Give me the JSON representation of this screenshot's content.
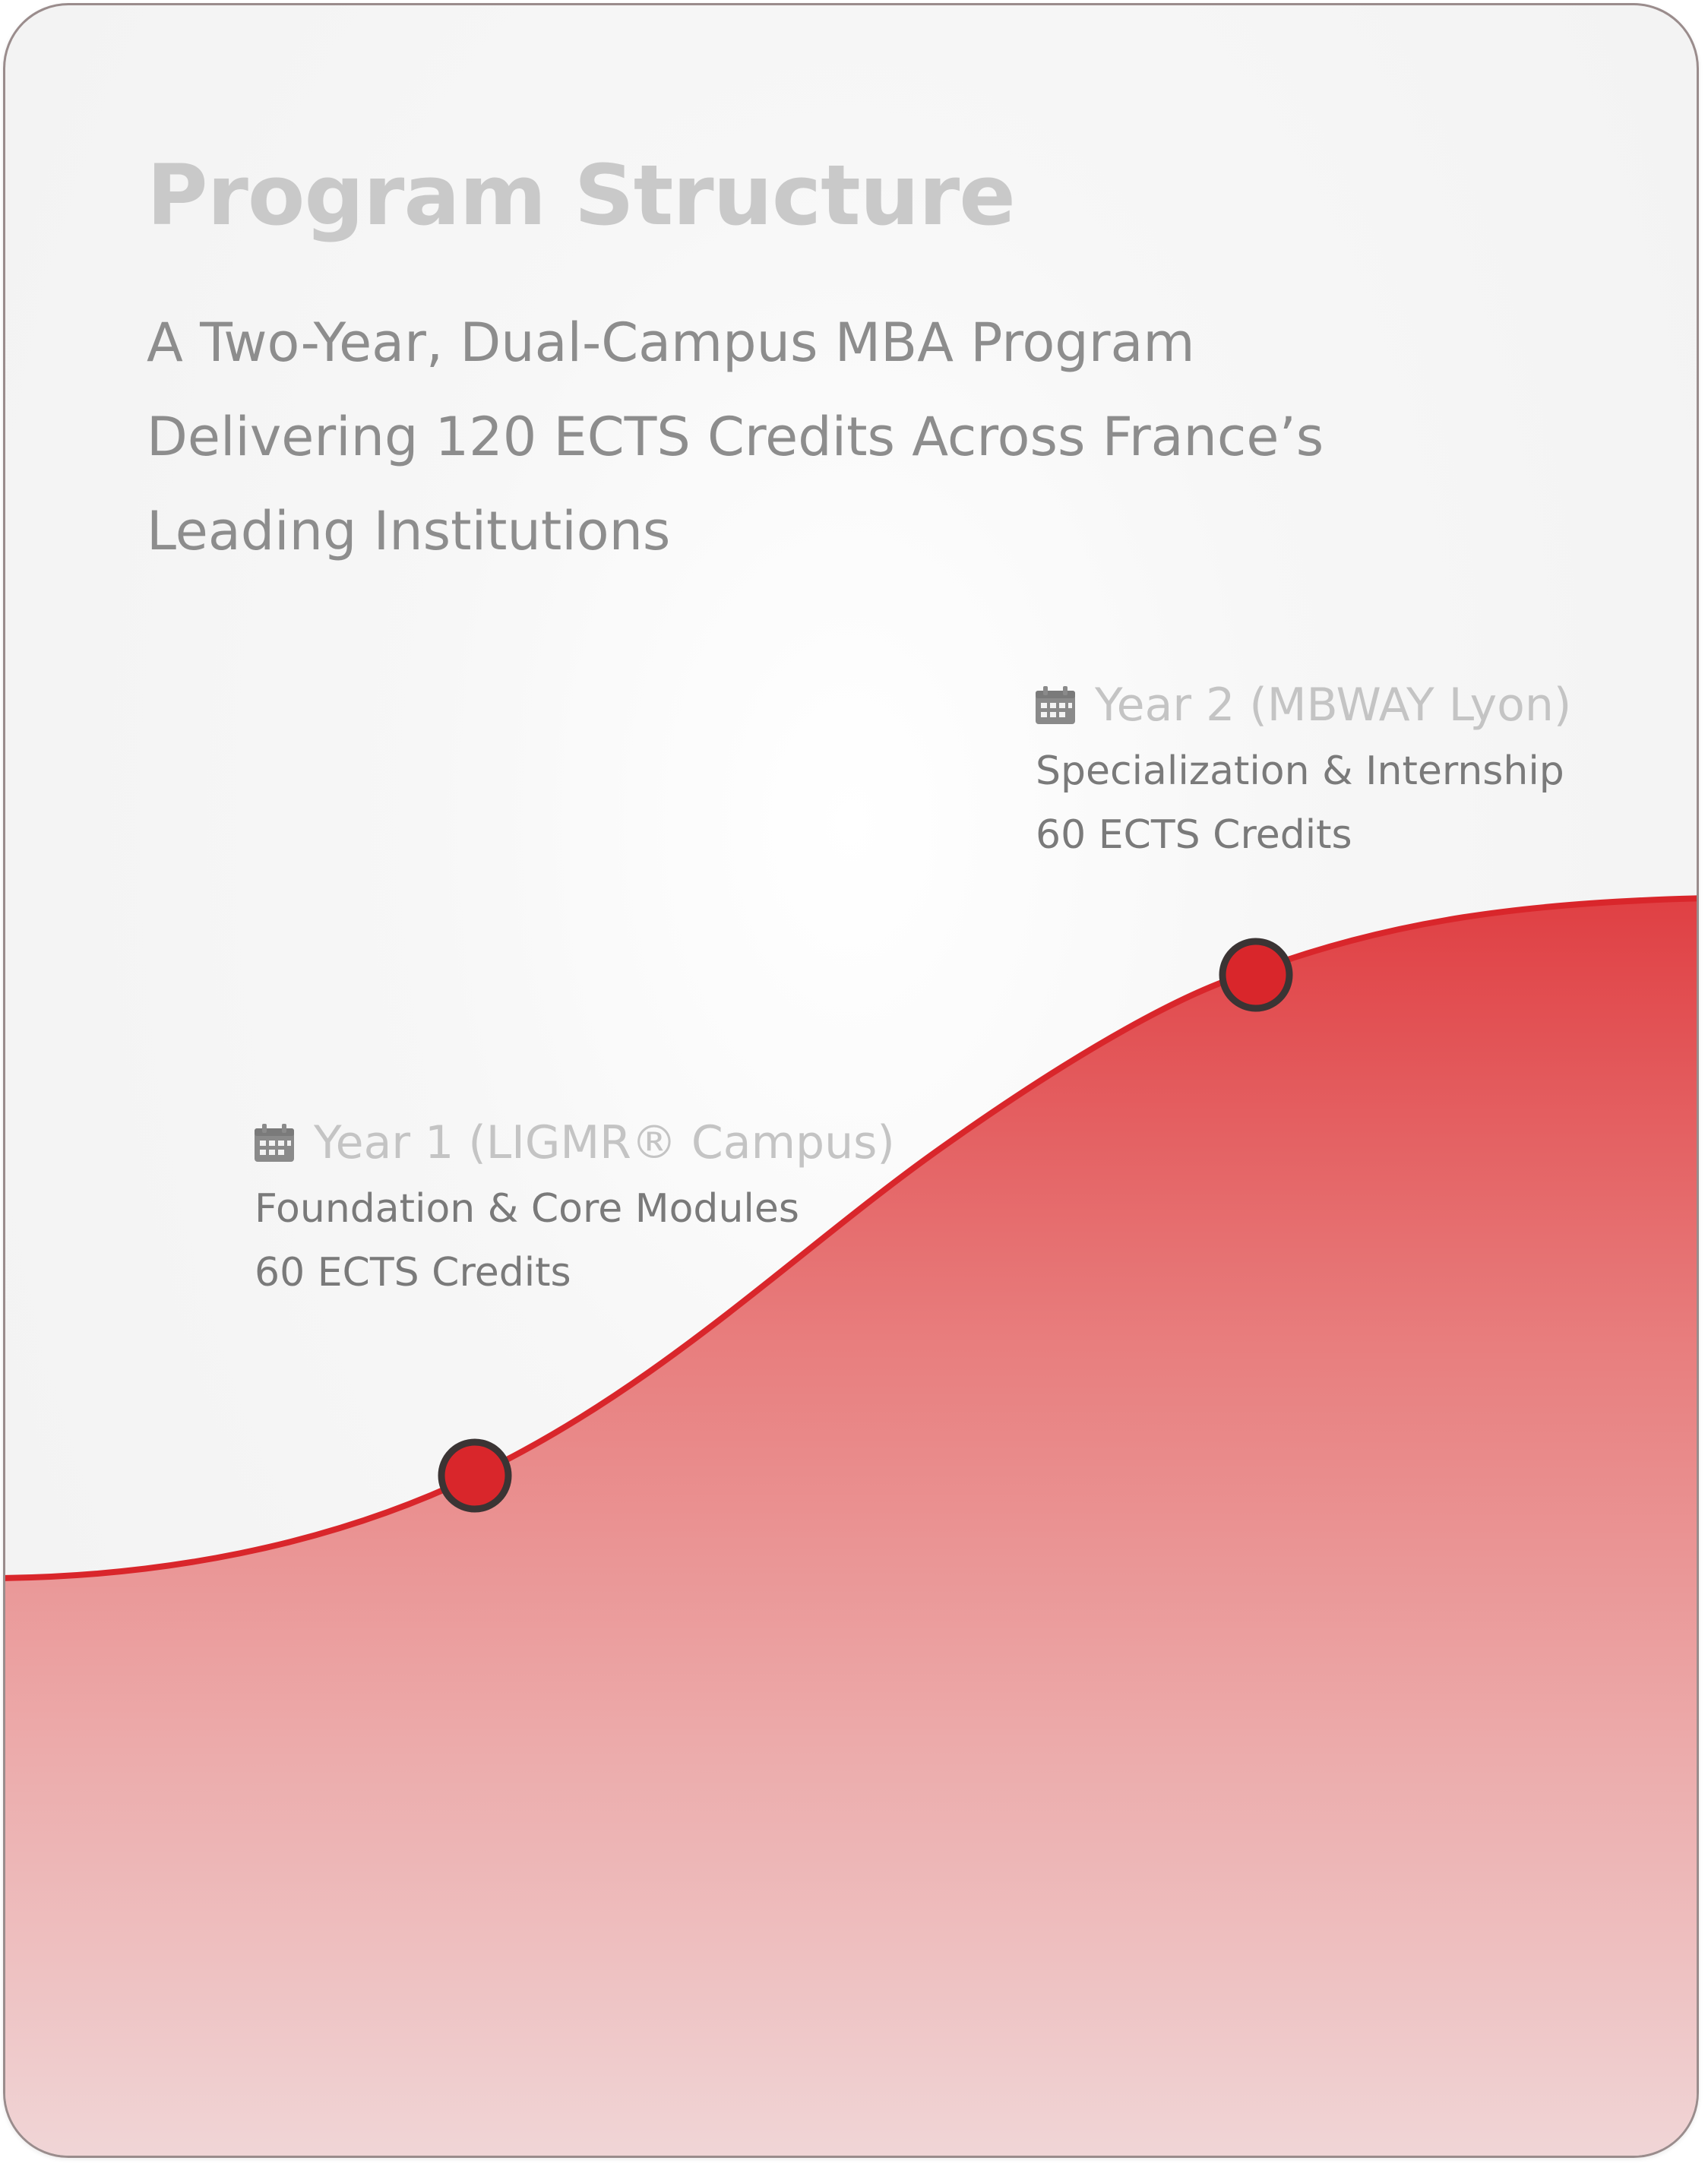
{
  "header": {
    "title": "Program Structure",
    "subtitle_lines": [
      "A Two-Year, Dual-Campus MBA Program",
      "Delivering 120 ECTS Credits Across France’s",
      "Leading Institutions"
    ]
  },
  "milestones": [
    {
      "icon": "calendar-icon",
      "title": "Year 1 (LIGMR® Campus)",
      "description": "Foundation & Core Modules",
      "credits": "60 ECTS Credits"
    },
    {
      "icon": "calendar-icon",
      "title": "Year 2 (MBWAY Lyon)",
      "description": "Specialization & Internship",
      "credits": "60 ECTS Credits"
    }
  ],
  "colors": {
    "accent": "#d9262b",
    "marker_outline": "#3b3434",
    "title": "#c9c9c9",
    "subtitle": "#8d8d8d",
    "milestone_title": "#c4c4c4",
    "milestone_text": "#7a7a7a"
  }
}
